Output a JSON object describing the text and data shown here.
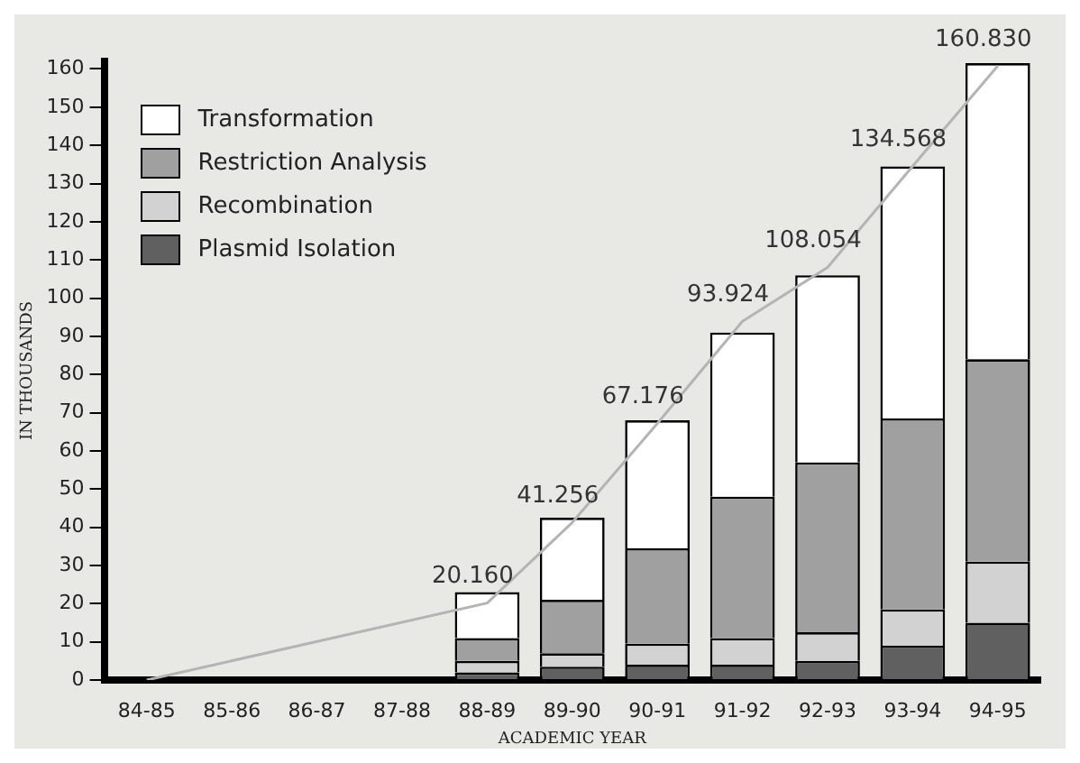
{
  "chart_data": {
    "type": "bar",
    "xlabel": "ACADEMIC YEAR",
    "ylabel": "IN THOUSANDS",
    "categories": [
      "84-85",
      "85-86",
      "86-87",
      "87-88",
      "88-89",
      "89-90",
      "90-91",
      "91-92",
      "92-93",
      "93-94",
      "94-95"
    ],
    "stacked": true,
    "legend": "top left",
    "grid": false,
    "ylim": [
      0,
      162
    ],
    "yticks": [
      0,
      10,
      20,
      30,
      40,
      50,
      60,
      70,
      80,
      90,
      100,
      110,
      120,
      130,
      140,
      150,
      160
    ],
    "series": [
      {
        "name": "Plasmid Isolation",
        "color": "#606060",
        "values": [
          null,
          null,
          null,
          null,
          2,
          3.5,
          4,
          4,
          5,
          9,
          15
        ]
      },
      {
        "name": "Recombination",
        "color": "#d2d2d2",
        "values": [
          null,
          null,
          null,
          null,
          3,
          3.5,
          5.5,
          7,
          7.5,
          9.5,
          16
        ]
      },
      {
        "name": "Restriction Analysis",
        "color": "#a0a0a0",
        "values": [
          null,
          null,
          null,
          null,
          6,
          14,
          25,
          37,
          44.5,
          50,
          53
        ]
      },
      {
        "name": "Transformation",
        "color": "#ffffff",
        "values": [
          null,
          null,
          null,
          null,
          12,
          21.5,
          33.5,
          43,
          49,
          66,
          77.5
        ]
      },
      {
        "type": "line",
        "color": "#b4b4b4",
        "values": [
          0,
          null,
          null,
          null,
          20.16,
          41.256,
          67.176,
          93.924,
          108.054,
          134.568,
          160.83
        ],
        "value_labels": [
          null,
          null,
          null,
          null,
          "20.160",
          "41.256",
          "67.176",
          "93.924",
          "108.054",
          "134.568",
          "160.830"
        ]
      }
    ]
  }
}
